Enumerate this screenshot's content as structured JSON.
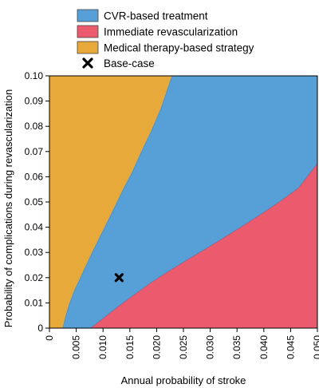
{
  "chart_data": {
    "type": "area",
    "title": "",
    "xlabel": "Annual probability of stroke",
    "ylabel": "Probability of complications during revascularization",
    "xlim": [
      0,
      0.05
    ],
    "ylim": [
      0,
      0.1
    ],
    "x_ticks": [
      "0",
      "0.005",
      "0.010",
      "0.015",
      "0.020",
      "0.025",
      "0.030",
      "0.035",
      "0.040",
      "0.045",
      "0.050"
    ],
    "y_ticks": [
      "0",
      "0.01",
      "0.02",
      "0.03",
      "0.04",
      "0.05",
      "0.06",
      "0.07",
      "0.08",
      "0.09",
      "0.10"
    ],
    "grid": false,
    "legend_position": "top",
    "regions": [
      {
        "name": "CVR-based treatment",
        "color": "#569fd7"
      },
      {
        "name": "Immediate revascularization",
        "color": "#ec5a6e"
      },
      {
        "name": "Medical therapy-based strategy",
        "color": "#e7a93a"
      }
    ],
    "boundaries": {
      "medical_cvr": {
        "x": [
          0.0025,
          0.0031,
          0.0038,
          0.0047,
          0.0058,
          0.0069,
          0.008,
          0.0094,
          0.0108,
          0.0122,
          0.0138,
          0.0155,
          0.0172,
          0.019,
          0.0208,
          0.0229
        ],
        "y": [
          0.0,
          0.005,
          0.01,
          0.015,
          0.02,
          0.025,
          0.03,
          0.036,
          0.042,
          0.048,
          0.055,
          0.062,
          0.07,
          0.078,
          0.087,
          0.1
        ]
      },
      "cvr_immediate": {
        "x": [
          0.0077,
          0.01,
          0.0128,
          0.0158,
          0.0188,
          0.022,
          0.0255,
          0.029,
          0.0325,
          0.036,
          0.0395,
          0.043,
          0.0465,
          0.05
        ],
        "y": [
          0.0,
          0.0038,
          0.0085,
          0.0132,
          0.0178,
          0.0222,
          0.0268,
          0.0312,
          0.0358,
          0.0404,
          0.0452,
          0.0502,
          0.0556,
          0.0653
        ]
      }
    },
    "markers": [
      {
        "name": "Base-case",
        "x": 0.013,
        "y": 0.02,
        "symbol": "x"
      }
    ]
  }
}
